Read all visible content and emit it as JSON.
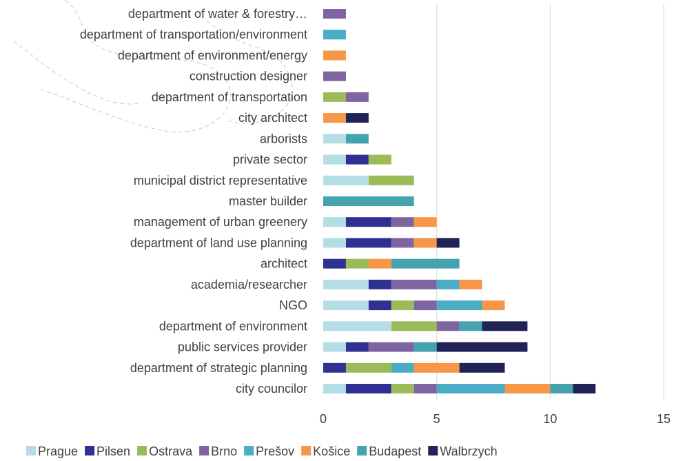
{
  "chart_data": {
    "type": "bar",
    "orientation": "horizontal",
    "stacked": true,
    "categories": [
      "city councilor",
      "department of strategic planning",
      "public services provider",
      "department of environment",
      "NGO",
      "academia/researcher",
      "architect",
      "department of land use planning",
      "management of urban greenery",
      "master builder",
      "municipal district representative",
      "private sector",
      "arborists",
      "city architect",
      "department of transportation",
      "construction designer",
      "department of environment/energy",
      "department of transportation/environment",
      "department of water & forestry…"
    ],
    "series": [
      {
        "name": "Prague",
        "color": "#b4dde6",
        "values": [
          1,
          0,
          1,
          3,
          2,
          2,
          0,
          1,
          1,
          0,
          2,
          1,
          1,
          0,
          0,
          0,
          0,
          0,
          0
        ]
      },
      {
        "name": "Pilsen",
        "color": "#2e3192",
        "values": [
          2,
          1,
          1,
          0,
          1,
          1,
          1,
          2,
          2,
          0,
          0,
          1,
          0,
          0,
          0,
          0,
          0,
          0,
          0
        ]
      },
      {
        "name": "Ostrava",
        "color": "#9bbb59",
        "values": [
          1,
          2,
          0,
          2,
          1,
          0,
          1,
          0,
          0,
          0,
          2,
          1,
          0,
          0,
          1,
          0,
          0,
          0,
          0
        ]
      },
      {
        "name": "Brno",
        "color": "#8064a2",
        "values": [
          1,
          0,
          2,
          1,
          1,
          2,
          0,
          1,
          1,
          0,
          0,
          0,
          0,
          0,
          1,
          1,
          0,
          0,
          1
        ]
      },
      {
        "name": "Prešov",
        "color": "#4bacc6",
        "values": [
          3,
          1,
          0,
          0,
          2,
          1,
          0,
          0,
          0,
          0,
          0,
          0,
          0,
          0,
          0,
          0,
          0,
          1,
          0
        ]
      },
      {
        "name": "Košice",
        "color": "#f79646",
        "values": [
          2,
          2,
          0,
          0,
          1,
          1,
          1,
          1,
          1,
          0,
          0,
          0,
          0,
          1,
          0,
          0,
          1,
          0,
          0
        ]
      },
      {
        "name": "Budapest",
        "color": "#44a4ad",
        "values": [
          1,
          0,
          1,
          1,
          0,
          0,
          3,
          0,
          0,
          4,
          0,
          0,
          1,
          0,
          0,
          0,
          0,
          0,
          0
        ]
      },
      {
        "name": "Walbrzych",
        "color": "#1f2357",
        "values": [
          1,
          2,
          4,
          2,
          0,
          0,
          0,
          1,
          0,
          0,
          0,
          0,
          0,
          1,
          0,
          0,
          0,
          0,
          0
        ]
      }
    ],
    "xlim": [
      0,
      15
    ],
    "xticks": [
      "0",
      "5",
      "10",
      "15"
    ],
    "grid": true,
    "legend_position": "bottom"
  }
}
